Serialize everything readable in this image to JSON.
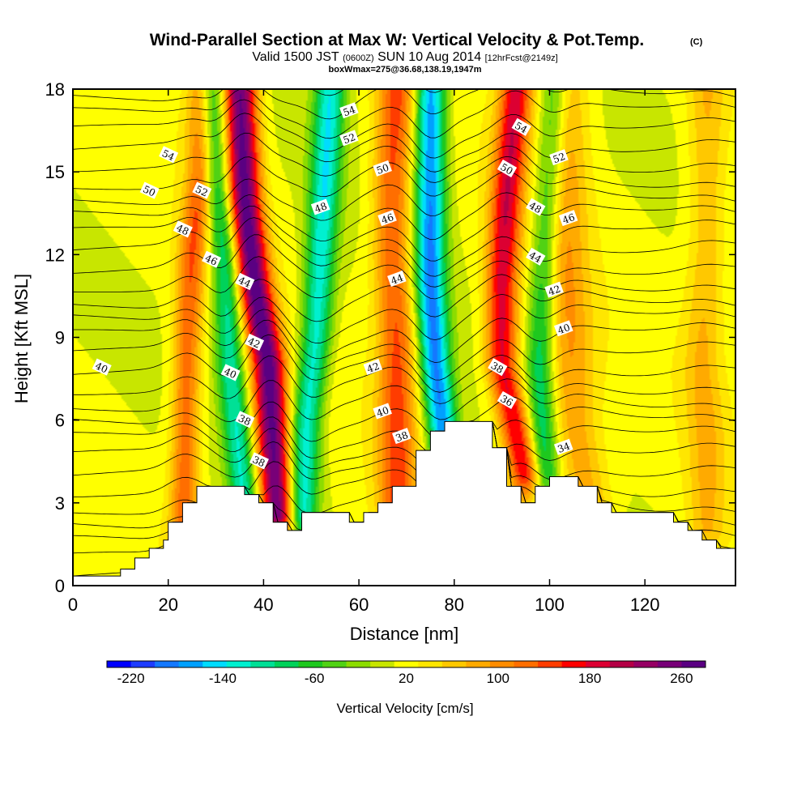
{
  "header": {
    "title": "Wind-Parallel Section at Max W: Vertical Velocity & Pot.Temp.",
    "title_mark": "(C)",
    "valid_a": "Valid 1500 JST",
    "valid_b": "(0600Z)",
    "valid_c": "SUN 10 Aug 2014",
    "valid_d": "[12hrFcst@2149z]",
    "box_info": "boxWmax=275@36.68,138.19,1947m"
  },
  "chart_data": {
    "type": "heatmap",
    "xlabel": "Distance [nm]",
    "ylabel": "Height [Kft MSL]",
    "xlim": [
      0,
      139
    ],
    "ylim": [
      0,
      18
    ],
    "x_ticks": [
      "0",
      "20",
      "40",
      "60",
      "80",
      "100",
      "120"
    ],
    "y_ticks": [
      "0",
      "3",
      "6",
      "9",
      "12",
      "15",
      "18"
    ],
    "colorbar": {
      "title": "Vertical Velocity [cm/s]",
      "tick_labels": [
        "-220",
        "-140",
        "-60",
        "20",
        "100",
        "180",
        "260"
      ],
      "colors": [
        "#0000ff",
        "#1e3cff",
        "#1478ff",
        "#00a0ff",
        "#00dcff",
        "#00f0d0",
        "#00e096",
        "#00d25a",
        "#1ec81e",
        "#50d214",
        "#8cdc00",
        "#c8e600",
        "#ffff00",
        "#ffe600",
        "#ffc800",
        "#ffaa00",
        "#ff8c00",
        "#ff6e00",
        "#ff3c00",
        "#ff0000",
        "#dc0032",
        "#b40046",
        "#960064",
        "#780078",
        "#5a0082"
      ]
    },
    "terrain_kft": [
      [
        0,
        0.35
      ],
      [
        10,
        0.35
      ],
      [
        10,
        0.6
      ],
      [
        13,
        0.6
      ],
      [
        13,
        1.0
      ],
      [
        16,
        1.0
      ],
      [
        16,
        1.35
      ],
      [
        19,
        1.35
      ],
      [
        19,
        1.65
      ],
      [
        20,
        1.65
      ],
      [
        20,
        2.3
      ],
      [
        23,
        2.3
      ],
      [
        23,
        3.0
      ],
      [
        26,
        3.0
      ],
      [
        26,
        3.6
      ],
      [
        36,
        3.6
      ],
      [
        36,
        3.3
      ],
      [
        39,
        3.3
      ],
      [
        39,
        3.0
      ],
      [
        42,
        3.0
      ],
      [
        42,
        2.3
      ],
      [
        45,
        2.3
      ],
      [
        45,
        2.0
      ],
      [
        48,
        2.0
      ],
      [
        48,
        2.65
      ],
      [
        58,
        2.65
      ],
      [
        58,
        2.3
      ],
      [
        61,
        2.3
      ],
      [
        61,
        2.65
      ],
      [
        64,
        2.65
      ],
      [
        64,
        3.0
      ],
      [
        67,
        3.0
      ],
      [
        67,
        3.6
      ],
      [
        72,
        3.6
      ],
      [
        72,
        4.9
      ],
      [
        75,
        4.9
      ],
      [
        75,
        5.6
      ],
      [
        78,
        5.6
      ],
      [
        78,
        5.95
      ],
      [
        88,
        5.95
      ],
      [
        88,
        5.0
      ],
      [
        91,
        5.0
      ],
      [
        91,
        3.6
      ],
      [
        94,
        3.6
      ],
      [
        94,
        3.0
      ],
      [
        97,
        3.0
      ],
      [
        97,
        3.6
      ],
      [
        100,
        3.6
      ],
      [
        100,
        3.95
      ],
      [
        106,
        3.95
      ],
      [
        106,
        3.6
      ],
      [
        110,
        3.6
      ],
      [
        110,
        3.0
      ],
      [
        113,
        3.0
      ],
      [
        113,
        2.65
      ],
      [
        126,
        2.65
      ],
      [
        126,
        2.3
      ],
      [
        129,
        2.3
      ],
      [
        129,
        2.0
      ],
      [
        132,
        2.0
      ],
      [
        132,
        1.65
      ],
      [
        135,
        1.65
      ],
      [
        135,
        1.35
      ],
      [
        139,
        1.35
      ]
    ],
    "updraft_bands": [
      {
        "name": "updraft-w25",
        "x": [
          [
            0,
            23
          ],
          [
            9,
            24
          ],
          [
            12,
            25
          ],
          [
            15,
            27
          ],
          [
            18,
            27
          ]
        ],
        "peak": 120,
        "width": 3.0
      },
      {
        "name": "downdraft-w30",
        "x": [
          [
            3,
            36
          ],
          [
            8,
            33
          ],
          [
            12,
            32
          ],
          [
            15,
            30
          ],
          [
            18,
            29
          ]
        ],
        "peak": -130,
        "width": 3.0
      },
      {
        "name": "updraft-w40",
        "x": [
          [
            2.5,
            43
          ],
          [
            5,
            42
          ],
          [
            8,
            41
          ],
          [
            11,
            38
          ],
          [
            14,
            36
          ],
          [
            18,
            35
          ]
        ],
        "peak": 265,
        "width": 3.5
      },
      {
        "name": "downdraft-w48",
        "x": [
          [
            2.5,
            48
          ],
          [
            6,
            49
          ],
          [
            9,
            51
          ],
          [
            12,
            52
          ],
          [
            15,
            53
          ],
          [
            18,
            54
          ]
        ],
        "peak": -150,
        "width": 3.2
      },
      {
        "name": "updraft-w68",
        "x": [
          [
            3,
            68
          ],
          [
            9,
            68
          ],
          [
            12,
            67
          ],
          [
            15,
            67
          ],
          [
            18,
            68
          ]
        ],
        "peak": 130,
        "width": 4.0
      },
      {
        "name": "downdraft-w75",
        "x": [
          [
            5,
            78
          ],
          [
            8,
            76
          ],
          [
            11,
            75
          ],
          [
            14,
            75
          ],
          [
            18,
            75
          ]
        ],
        "peak": -200,
        "width": 3.2
      },
      {
        "name": "updraft-w90",
        "x": [
          [
            4,
            95
          ],
          [
            8,
            90
          ],
          [
            11,
            90
          ],
          [
            14,
            91
          ],
          [
            18,
            93
          ]
        ],
        "peak": 180,
        "width": 3.4
      },
      {
        "name": "downdraft-w98",
        "x": [
          [
            4,
            99
          ],
          [
            8,
            98
          ],
          [
            12,
            99
          ],
          [
            18,
            101
          ]
        ],
        "peak": -110,
        "width": 3.0
      },
      {
        "name": "updraft-w110",
        "x": [
          [
            3,
            108
          ],
          [
            6,
            105
          ],
          [
            9,
            104
          ],
          [
            12,
            103
          ]
        ],
        "peak": 80,
        "width": 5.0
      },
      {
        "name": "updraft-w132",
        "x": [
          [
            2,
            133
          ],
          [
            5,
            133
          ],
          [
            8,
            132
          ],
          [
            12,
            133
          ]
        ],
        "peak": 60,
        "width": 4.0
      }
    ],
    "theta_contours": [
      {
        "value": 34,
        "label": "34",
        "base_kft": 5.0,
        "label_x": 103
      },
      {
        "value": 36,
        "label": "36",
        "base_kft": 6.6,
        "label_x": 91
      },
      {
        "value": 38,
        "label": "38",
        "base_kft": 7.8,
        "label_x": 88
      },
      {
        "value": 40,
        "label": "40",
        "base_kft": 8.5,
        "label_x": 103
      },
      {
        "value": 42,
        "label": "42",
        "base_kft": 10.7,
        "label_x": 101
      },
      {
        "value": 44,
        "label": "44",
        "base_kft": 11.9,
        "label_x": 98
      },
      {
        "value": 46,
        "label": "46",
        "base_kft": 13.2,
        "label_x": 105
      },
      {
        "value": 48,
        "label": "48",
        "base_kft": 14.0,
        "label_x": 52
      },
      {
        "value": 50,
        "label": "50",
        "base_kft": 15.1,
        "label_x": 65
      },
      {
        "value": 52,
        "label": "52",
        "base_kft": 16.2,
        "label_x": 58
      },
      {
        "value": 54,
        "label": "54",
        "base_kft": 17.3,
        "label_x": 58
      }
    ],
    "contour_labels": [
      {
        "text": "54",
        "x": 20,
        "y": 15.6
      },
      {
        "text": "50",
        "x": 16,
        "y": 14.3
      },
      {
        "text": "52",
        "x": 27,
        "y": 14.3
      },
      {
        "text": "48",
        "x": 23,
        "y": 12.9
      },
      {
        "text": "46",
        "x": 29,
        "y": 11.8
      },
      {
        "text": "44",
        "x": 36,
        "y": 11.0
      },
      {
        "text": "42",
        "x": 38,
        "y": 8.8
      },
      {
        "text": "40",
        "x": 33,
        "y": 7.7
      },
      {
        "text": "38",
        "x": 36,
        "y": 6.0
      },
      {
        "text": "38",
        "x": 39,
        "y": 4.5
      },
      {
        "text": "40",
        "x": 6,
        "y": 7.9
      },
      {
        "text": "54",
        "x": 58,
        "y": 17.2
      },
      {
        "text": "52",
        "x": 58,
        "y": 16.2
      },
      {
        "text": "50",
        "x": 65,
        "y": 15.1
      },
      {
        "text": "48",
        "x": 52,
        "y": 13.7
      },
      {
        "text": "46",
        "x": 66,
        "y": 13.3
      },
      {
        "text": "44",
        "x": 68,
        "y": 11.1
      },
      {
        "text": "42",
        "x": 63,
        "y": 7.9
      },
      {
        "text": "40",
        "x": 65,
        "y": 6.3
      },
      {
        "text": "38",
        "x": 69,
        "y": 5.4
      },
      {
        "text": "54",
        "x": 94,
        "y": 16.6
      },
      {
        "text": "52",
        "x": 102,
        "y": 15.5
      },
      {
        "text": "50",
        "x": 91,
        "y": 15.1
      },
      {
        "text": "48",
        "x": 97,
        "y": 13.7
      },
      {
        "text": "46",
        "x": 104,
        "y": 13.3
      },
      {
        "text": "44",
        "x": 97,
        "y": 11.9
      },
      {
        "text": "42",
        "x": 101,
        "y": 10.7
      },
      {
        "text": "40",
        "x": 103,
        "y": 9.3
      },
      {
        "text": "38",
        "x": 89,
        "y": 7.9
      },
      {
        "text": "36",
        "x": 91,
        "y": 6.7
      },
      {
        "text": "34",
        "x": 103,
        "y": 5.0
      }
    ]
  }
}
